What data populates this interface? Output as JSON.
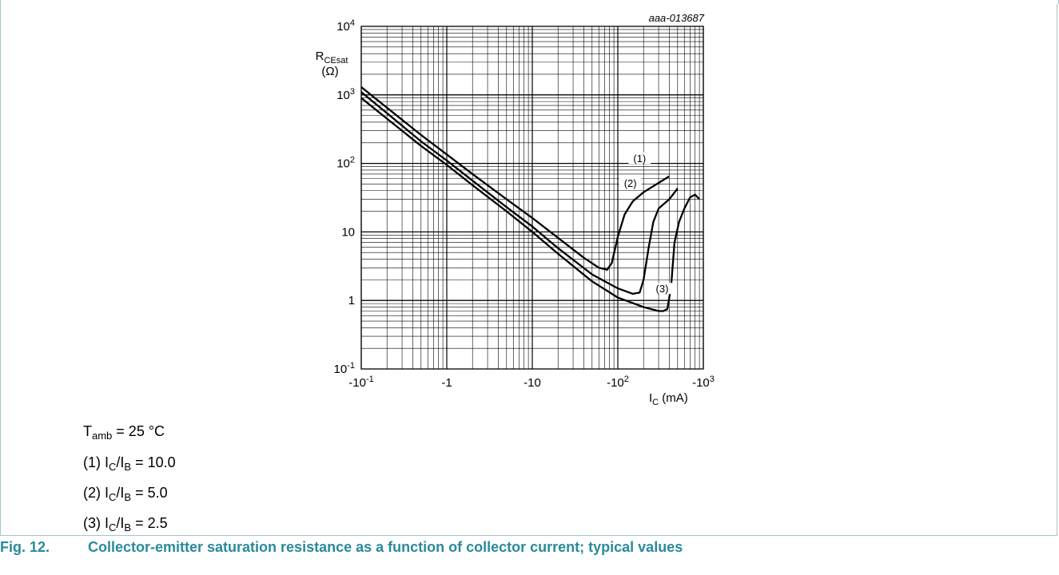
{
  "figure_id": "aaa-013687",
  "caption": {
    "number": "Fig. 12.",
    "text": "Collector-emitter saturation resistance as a function of collector current; typical values"
  },
  "conditions": [
    {
      "main": "T",
      "sub": "amb",
      "rest": " = 25 °C"
    },
    {
      "prefix": "(1) I",
      "sub1": "C",
      "mid": "/I",
      "sub2": "B",
      "rest": " = 10.0"
    },
    {
      "prefix": "(2) I",
      "sub1": "C",
      "mid": "/I",
      "sub2": "B",
      "rest": " = 5.0"
    },
    {
      "prefix": "(3) I",
      "sub1": "C",
      "mid": "/I",
      "sub2": "B",
      "rest": " = 2.5"
    }
  ],
  "colors": {
    "caption": "#2a8a9a",
    "border": "#a3c6cc",
    "curve": "#000000",
    "grid": "#000000"
  },
  "chart_data": {
    "type": "line",
    "x_scale": "log",
    "y_scale": "log",
    "xlim": [
      -0.1,
      -1000
    ],
    "ylim": [
      0.1,
      10000
    ],
    "grid": true,
    "xlabel": {
      "main": "I",
      "sub": "C",
      "rest": " (mA)"
    },
    "ylabel": {
      "main": "R",
      "sub": "CEsat",
      "unit": "(Ω)"
    },
    "x_ticks": [
      {
        "value": -0.1,
        "base": "-10",
        "sup": "-1"
      },
      {
        "value": -1,
        "base": "-1",
        "sup": ""
      },
      {
        "value": -10,
        "base": "-10",
        "sup": ""
      },
      {
        "value": -100,
        "base": "-10",
        "sup": "2"
      },
      {
        "value": -1000,
        "base": "-10",
        "sup": "3"
      }
    ],
    "y_ticks": [
      {
        "value": 0.1,
        "base": "10",
        "sup": "-1"
      },
      {
        "value": 1,
        "base": "1",
        "sup": ""
      },
      {
        "value": 10,
        "base": "10",
        "sup": ""
      },
      {
        "value": 100,
        "base": "10",
        "sup": "2"
      },
      {
        "value": 1000,
        "base": "10",
        "sup": "3"
      },
      {
        "value": 10000,
        "base": "10",
        "sup": "4"
      }
    ],
    "series": [
      {
        "name": "(1)",
        "x": [
          -0.1,
          -0.2,
          -0.5,
          -1,
          -2,
          -5,
          -10,
          -20,
          -40,
          -60,
          -75,
          -85,
          -100,
          -120,
          -150,
          -200,
          -300,
          -400
        ],
        "y": [
          1300,
          650,
          260,
          135,
          70,
          30,
          16,
          8.2,
          4.2,
          3.0,
          2.8,
          3.5,
          8.5,
          18,
          28,
          38,
          52,
          65
        ]
      },
      {
        "name": "(2)",
        "x": [
          -0.1,
          -0.2,
          -0.5,
          -1,
          -2,
          -5,
          -10,
          -20,
          -50,
          -100,
          -150,
          -180,
          -200,
          -230,
          -260,
          -300,
          -400,
          -500
        ],
        "y": [
          1100,
          540,
          210,
          110,
          56,
          23,
          12,
          5.8,
          2.4,
          1.5,
          1.25,
          1.3,
          2.0,
          6,
          14,
          22,
          30,
          43
        ]
      },
      {
        "name": "(3)",
        "x": [
          -0.1,
          -0.2,
          -0.5,
          -1,
          -2,
          -5,
          -10,
          -20,
          -50,
          -100,
          -200,
          -300,
          -340,
          -380,
          -420,
          -460,
          -520,
          -600,
          -700,
          -800,
          -900
        ],
        "y": [
          900,
          450,
          180,
          95,
          48,
          20,
          10,
          4.8,
          1.9,
          1.1,
          0.8,
          0.7,
          0.7,
          0.75,
          1.6,
          7,
          14,
          22,
          32,
          35,
          30
        ]
      }
    ]
  }
}
